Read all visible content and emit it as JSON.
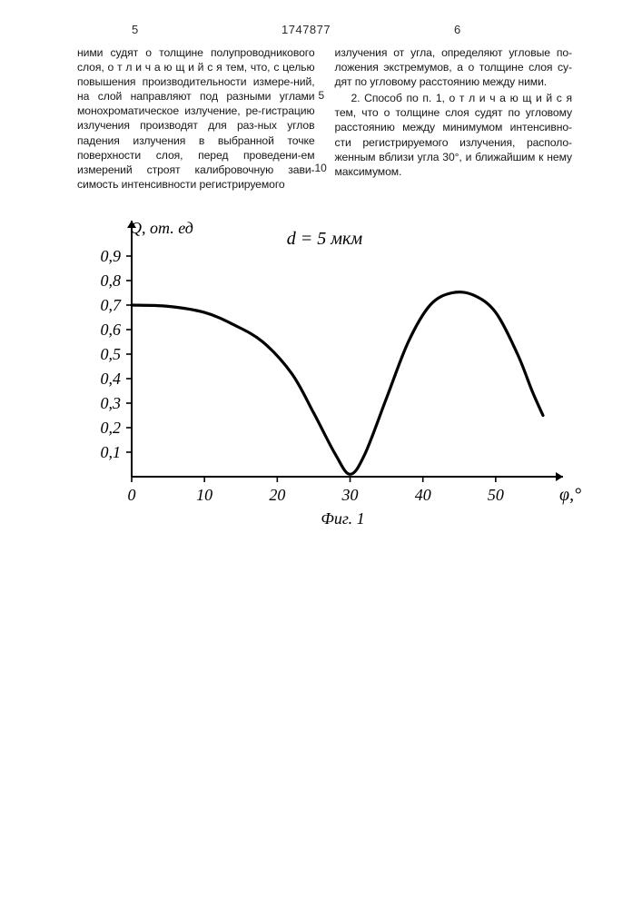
{
  "header": {
    "page_left": "5",
    "doc_number": "1747877",
    "page_right": "6"
  },
  "text": {
    "col_left": "ними судят о толщине полупроводникового слоя, о т л и ч а ю щ и й с я тем, что, с целью повышения производительности измере-ний, на слой направляют под разными углами монохроматическое излучение, ре-гистрацию излучения производят для раз-ных углов падения излучения в выбранной точке поверхности слоя, перед проведени-ем измерений строят калибровочную зави-симость интенсивности регистрируемого",
    "margin5": "5",
    "margin10": "10",
    "col_right_p1": "излучения от угла, определяют угловые по-ложения экстремумов, а о толщине слоя су-дят по угловому расстоянию между ними.",
    "col_right_p2": "2. Способ по п. 1, о т л и ч а ю щ и й с я тем, что о толщине слоя судят по угловому расстоянию между минимумом интенсивно-сти регистрируемого излучения, располо-женным вблизи угла 30°, и ближайшим к нему максимумом."
  },
  "chart": {
    "type": "line",
    "title": "d = 5 мкм",
    "title_fontsize": 20,
    "y_label": "Q, от. ед",
    "y_label_fontsize": 18,
    "x_label": "φ,°",
    "x_label_fontsize": 20,
    "caption": "Фиг. 1",
    "caption_fontsize": 18,
    "xlim": [
      0,
      58
    ],
    "ylim": [
      0,
      1.0
    ],
    "x_ticks": [
      0,
      10,
      20,
      30,
      40,
      50
    ],
    "y_ticks": [
      0.1,
      0.2,
      0.3,
      0.4,
      0.5,
      0.6,
      0.7,
      0.8,
      0.9
    ],
    "y_tick_labels": [
      "0,1",
      "0,2",
      "0,3",
      "0,4",
      "0,5",
      "0,6",
      "0,7",
      "0,8",
      "0,9"
    ],
    "line_color": "#000000",
    "line_width": 3.2,
    "axis_color": "#000000",
    "axis_width": 2.0,
    "tick_len_major": 6,
    "background_color": "#ffffff",
    "text_color": "#000000",
    "tick_fontsize": 18,
    "data": [
      {
        "x": 0,
        "y": 0.7
      },
      {
        "x": 5,
        "y": 0.695
      },
      {
        "x": 10,
        "y": 0.67
      },
      {
        "x": 14,
        "y": 0.62
      },
      {
        "x": 18,
        "y": 0.55
      },
      {
        "x": 22,
        "y": 0.42
      },
      {
        "x": 25,
        "y": 0.26
      },
      {
        "x": 28,
        "y": 0.09
      },
      {
        "x": 30,
        "y": 0.01
      },
      {
        "x": 32,
        "y": 0.09
      },
      {
        "x": 35,
        "y": 0.32
      },
      {
        "x": 38,
        "y": 0.55
      },
      {
        "x": 41,
        "y": 0.7
      },
      {
        "x": 44,
        "y": 0.75
      },
      {
        "x": 47,
        "y": 0.74
      },
      {
        "x": 50,
        "y": 0.67
      },
      {
        "x": 53,
        "y": 0.5
      },
      {
        "x": 55,
        "y": 0.35
      },
      {
        "x": 56.5,
        "y": 0.25
      }
    ]
  }
}
